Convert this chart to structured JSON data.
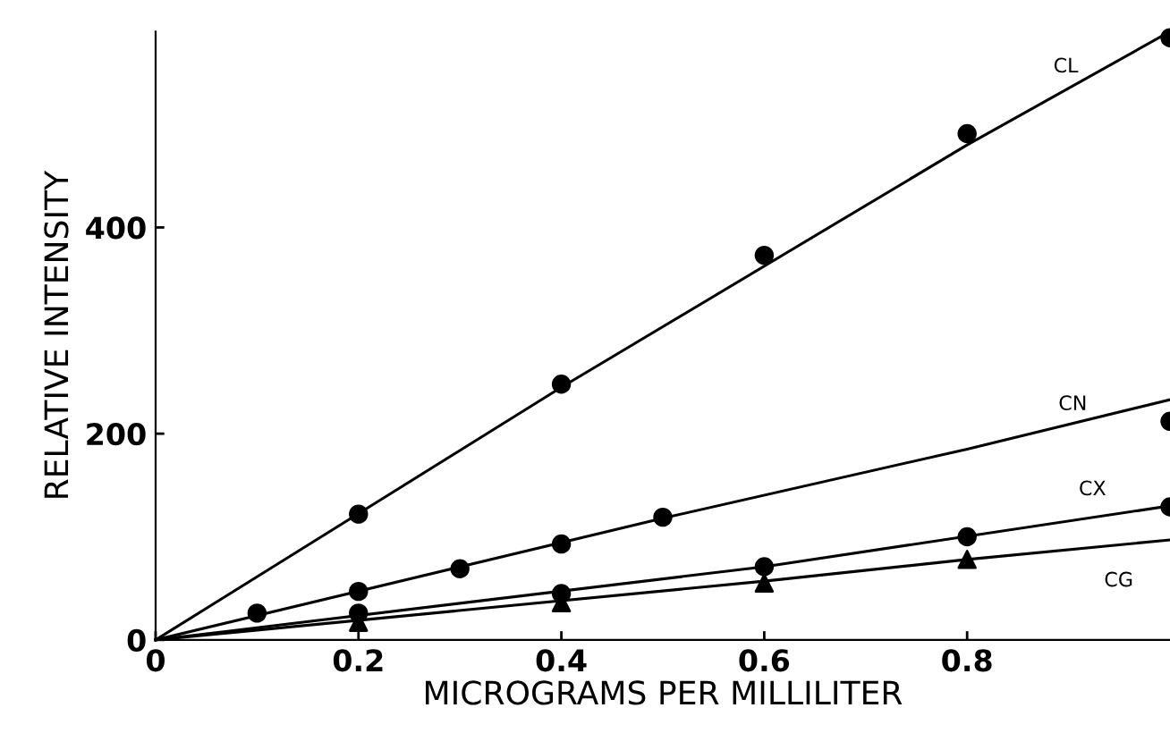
{
  "chart_data": {
    "type": "scatter",
    "xlabel": "MICROGRAMS PER MILLILITER",
    "ylabel": "RELATIVE INTENSITY",
    "xlim": [
      0,
      1.0
    ],
    "ylim": [
      0,
      590
    ],
    "xticks": [
      0,
      0.2,
      0.4,
      0.6,
      0.8
    ],
    "yticks": [
      0,
      200,
      400
    ],
    "grid": false,
    "legend": false,
    "series": [
      {
        "color": "#000000",
        "marker": "circle",
        "x": [
          0.1,
          0.2,
          0.4,
          0.6,
          0.8,
          1.0
        ],
        "values": [
          26,
          122,
          248,
          373,
          491,
          584
        ]
      },
      {
        "color": "#000000",
        "marker": "circle",
        "x": [
          0.2,
          0.3,
          0.4,
          0.5,
          1.0
        ],
        "values": [
          47,
          69,
          93,
          119,
          212
        ]
      },
      {
        "color": "#000000",
        "marker": "circle",
        "x": [
          0.2,
          0.4,
          0.6,
          0.8,
          1.0
        ],
        "values": [
          26,
          45,
          71,
          100,
          129
        ]
      },
      {
        "color": "#000000",
        "marker": "triangle",
        "x": [
          0.2,
          0.4,
          0.6,
          0.8
        ],
        "values": [
          17,
          36,
          55,
          78
        ]
      },
      {
        "type": "line",
        "name": "CL",
        "color": "#000000",
        "x": [
          0,
          0.4,
          0.8,
          1.0
        ],
        "values": [
          0,
          245,
          480,
          590
        ]
      },
      {
        "type": "line",
        "name": "CN",
        "color": "#000000",
        "x": [
          0,
          0.5,
          0.8,
          1.0
        ],
        "values": [
          0,
          118,
          185,
          233
        ]
      },
      {
        "type": "line",
        "name": "CX",
        "color": "#000000",
        "x": [
          0,
          0.6,
          1.0
        ],
        "values": [
          0,
          71,
          130
        ]
      },
      {
        "type": "line",
        "name": "CG",
        "color": "#000000",
        "x": [
          0,
          0.6,
          0.8,
          1.0
        ],
        "values": [
          0,
          57,
          78,
          97
        ]
      }
    ]
  }
}
